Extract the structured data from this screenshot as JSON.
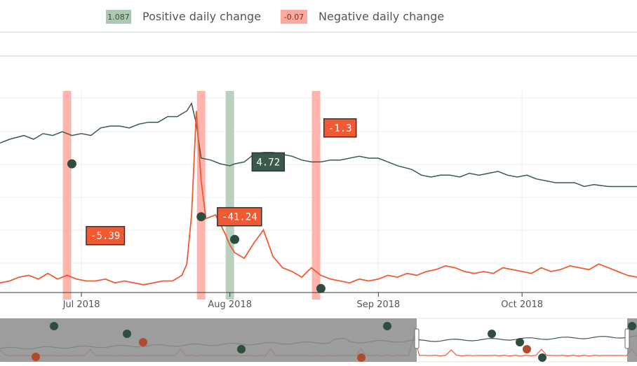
{
  "legend": {
    "positive": {
      "badge": "1.087",
      "label": "Positive daily change",
      "color": "#adc9b3"
    },
    "negative": {
      "badge": "-0.07",
      "label": "Negative daily change",
      "color": "#ffa8a0"
    }
  },
  "colors": {
    "price": "#3c5a4c",
    "change": "#f05a32",
    "dark_marker": "#2f4d3e",
    "brown_marker": "#b14a2c",
    "pos_band": "#adc9b3",
    "neg_band": "#ffa8a0",
    "range_shade": "#8c8c8c"
  },
  "chart_data": {
    "type": "line",
    "x_range": [
      "2018-06-14",
      "2018-10-25"
    ],
    "x_ticks": [
      {
        "date": "2018-07-01",
        "label": "Jul 2018"
      },
      {
        "date": "2018-08-01",
        "label": "Aug 2018"
      },
      {
        "date": "2018-09-01",
        "label": "Sep 2018"
      },
      {
        "date": "2018-10-01",
        "label": "Oct 2018"
      }
    ],
    "grid": true,
    "legend_position": "top",
    "series": [
      {
        "values": [
          [
            "2018-06-14",
            78
          ],
          [
            "2018-06-16",
            80
          ],
          [
            "2018-06-19",
            82
          ],
          [
            "2018-06-21",
            80
          ],
          [
            "2018-06-23",
            83
          ],
          [
            "2018-06-25",
            82
          ],
          [
            "2018-06-27",
            84
          ],
          [
            "2018-06-29",
            82
          ],
          [
            "2018-07-01",
            83
          ],
          [
            "2018-07-03",
            82
          ],
          [
            "2018-07-05",
            86
          ],
          [
            "2018-07-07",
            87
          ],
          [
            "2018-07-09",
            87
          ],
          [
            "2018-07-11",
            86
          ],
          [
            "2018-07-13",
            88
          ],
          [
            "2018-07-15",
            89
          ],
          [
            "2018-07-17",
            89
          ],
          [
            "2018-07-19",
            92
          ],
          [
            "2018-07-21",
            92
          ],
          [
            "2018-07-23",
            95
          ],
          [
            "2018-07-24",
            99
          ],
          [
            "2018-07-25",
            88
          ],
          [
            "2018-07-26",
            70
          ],
          [
            "2018-07-28",
            69
          ],
          [
            "2018-07-30",
            67
          ],
          [
            "2018-08-01",
            66
          ],
          [
            "2018-08-02",
            67
          ],
          [
            "2018-08-04",
            68
          ],
          [
            "2018-08-06",
            72
          ],
          [
            "2018-08-08",
            73
          ],
          [
            "2018-08-10",
            73
          ],
          [
            "2018-08-12",
            72
          ],
          [
            "2018-08-14",
            71
          ],
          [
            "2018-08-16",
            69
          ],
          [
            "2018-08-18",
            68
          ],
          [
            "2018-08-20",
            68
          ],
          [
            "2018-08-22",
            69
          ],
          [
            "2018-08-24",
            69
          ],
          [
            "2018-08-26",
            70
          ],
          [
            "2018-08-28",
            71
          ],
          [
            "2018-08-30",
            70
          ],
          [
            "2018-09-01",
            70
          ],
          [
            "2018-09-03",
            68
          ],
          [
            "2018-09-05",
            66
          ],
          [
            "2018-09-08",
            64
          ],
          [
            "2018-09-10",
            61
          ],
          [
            "2018-09-12",
            60
          ],
          [
            "2018-09-14",
            61
          ],
          [
            "2018-09-16",
            61
          ],
          [
            "2018-09-18",
            60
          ],
          [
            "2018-09-20",
            62
          ],
          [
            "2018-09-22",
            61
          ],
          [
            "2018-09-24",
            62
          ],
          [
            "2018-09-26",
            63
          ],
          [
            "2018-09-28",
            61
          ],
          [
            "2018-09-30",
            60
          ],
          [
            "2018-10-02",
            61
          ],
          [
            "2018-10-04",
            59
          ],
          [
            "2018-10-06",
            58
          ],
          [
            "2018-10-08",
            57
          ],
          [
            "2018-10-10",
            57
          ],
          [
            "2018-10-12",
            57
          ],
          [
            "2018-10-14",
            55
          ],
          [
            "2018-10-16",
            56
          ],
          [
            "2018-10-19",
            55
          ],
          [
            "2018-10-22",
            55
          ],
          [
            "2018-10-25",
            55
          ]
        ]
      },
      {
        "values": [
          [
            "2018-06-14",
            4
          ],
          [
            "2018-06-16",
            5
          ],
          [
            "2018-06-18",
            7
          ],
          [
            "2018-06-20",
            8
          ],
          [
            "2018-06-22",
            6
          ],
          [
            "2018-06-24",
            9
          ],
          [
            "2018-06-26",
            6
          ],
          [
            "2018-06-28",
            8
          ],
          [
            "2018-06-30",
            6
          ],
          [
            "2018-07-02",
            5
          ],
          [
            "2018-07-04",
            5
          ],
          [
            "2018-07-06",
            6
          ],
          [
            "2018-07-08",
            4
          ],
          [
            "2018-07-10",
            5
          ],
          [
            "2018-07-12",
            4
          ],
          [
            "2018-07-14",
            3
          ],
          [
            "2018-07-16",
            4
          ],
          [
            "2018-07-18",
            5
          ],
          [
            "2018-07-20",
            5
          ],
          [
            "2018-07-22",
            8
          ],
          [
            "2018-07-23",
            14
          ],
          [
            "2018-07-24",
            40
          ],
          [
            "2018-07-25",
            95
          ],
          [
            "2018-07-26",
            58
          ],
          [
            "2018-07-27",
            38
          ],
          [
            "2018-07-29",
            40
          ],
          [
            "2018-07-31",
            30
          ],
          [
            "2018-08-01",
            24
          ],
          [
            "2018-08-02",
            20
          ],
          [
            "2018-08-04",
            17
          ],
          [
            "2018-08-06",
            25
          ],
          [
            "2018-08-08",
            32
          ],
          [
            "2018-08-10",
            18
          ],
          [
            "2018-08-12",
            12
          ],
          [
            "2018-08-14",
            10
          ],
          [
            "2018-08-16",
            7
          ],
          [
            "2018-08-18",
            12
          ],
          [
            "2018-08-20",
            8
          ],
          [
            "2018-08-22",
            6
          ],
          [
            "2018-08-24",
            5
          ],
          [
            "2018-08-26",
            4
          ],
          [
            "2018-08-28",
            6
          ],
          [
            "2018-08-30",
            5
          ],
          [
            "2018-09-01",
            6
          ],
          [
            "2018-09-03",
            8
          ],
          [
            "2018-09-05",
            7
          ],
          [
            "2018-09-07",
            9
          ],
          [
            "2018-09-09",
            8
          ],
          [
            "2018-09-11",
            10
          ],
          [
            "2018-09-13",
            11
          ],
          [
            "2018-09-15",
            13
          ],
          [
            "2018-09-17",
            12
          ],
          [
            "2018-09-19",
            10
          ],
          [
            "2018-09-21",
            9
          ],
          [
            "2018-09-23",
            10
          ],
          [
            "2018-09-25",
            9
          ],
          [
            "2018-09-27",
            12
          ],
          [
            "2018-09-29",
            11
          ],
          [
            "2018-10-01",
            10
          ],
          [
            "2018-10-03",
            9
          ],
          [
            "2018-10-05",
            12
          ],
          [
            "2018-10-07",
            10
          ],
          [
            "2018-10-09",
            11
          ],
          [
            "2018-10-11",
            13
          ],
          [
            "2018-10-13",
            12
          ],
          [
            "2018-10-15",
            11
          ],
          [
            "2018-10-17",
            14
          ],
          [
            "2018-10-19",
            12
          ],
          [
            "2018-10-21",
            10
          ],
          [
            "2018-10-23",
            8
          ],
          [
            "2018-10-25",
            7
          ]
        ]
      }
    ],
    "bands": [
      {
        "date": "2018-06-28",
        "kind": "negative"
      },
      {
        "date": "2018-07-26",
        "kind": "negative"
      },
      {
        "date": "2018-08-01",
        "kind": "positive"
      },
      {
        "date": "2018-08-19",
        "kind": "negative"
      }
    ],
    "markers": [
      {
        "date": "2018-06-29",
        "y": 67
      },
      {
        "date": "2018-07-26",
        "y": 39
      },
      {
        "date": "2018-08-02",
        "y": 27
      },
      {
        "date": "2018-08-20",
        "y": 1
      }
    ],
    "annotations": [
      {
        "text": "-5.39",
        "date": "2018-07-06",
        "y": 29,
        "kind": "negative"
      },
      {
        "text": "-41.24",
        "date": "2018-08-03",
        "y": 39,
        "kind": "negative"
      },
      {
        "text": "4.72",
        "date": "2018-08-09",
        "y": 68,
        "kind": "positive"
      },
      {
        "text": "-1.3",
        "date": "2018-08-24",
        "y": 86,
        "kind": "negative"
      }
    ]
  }
}
